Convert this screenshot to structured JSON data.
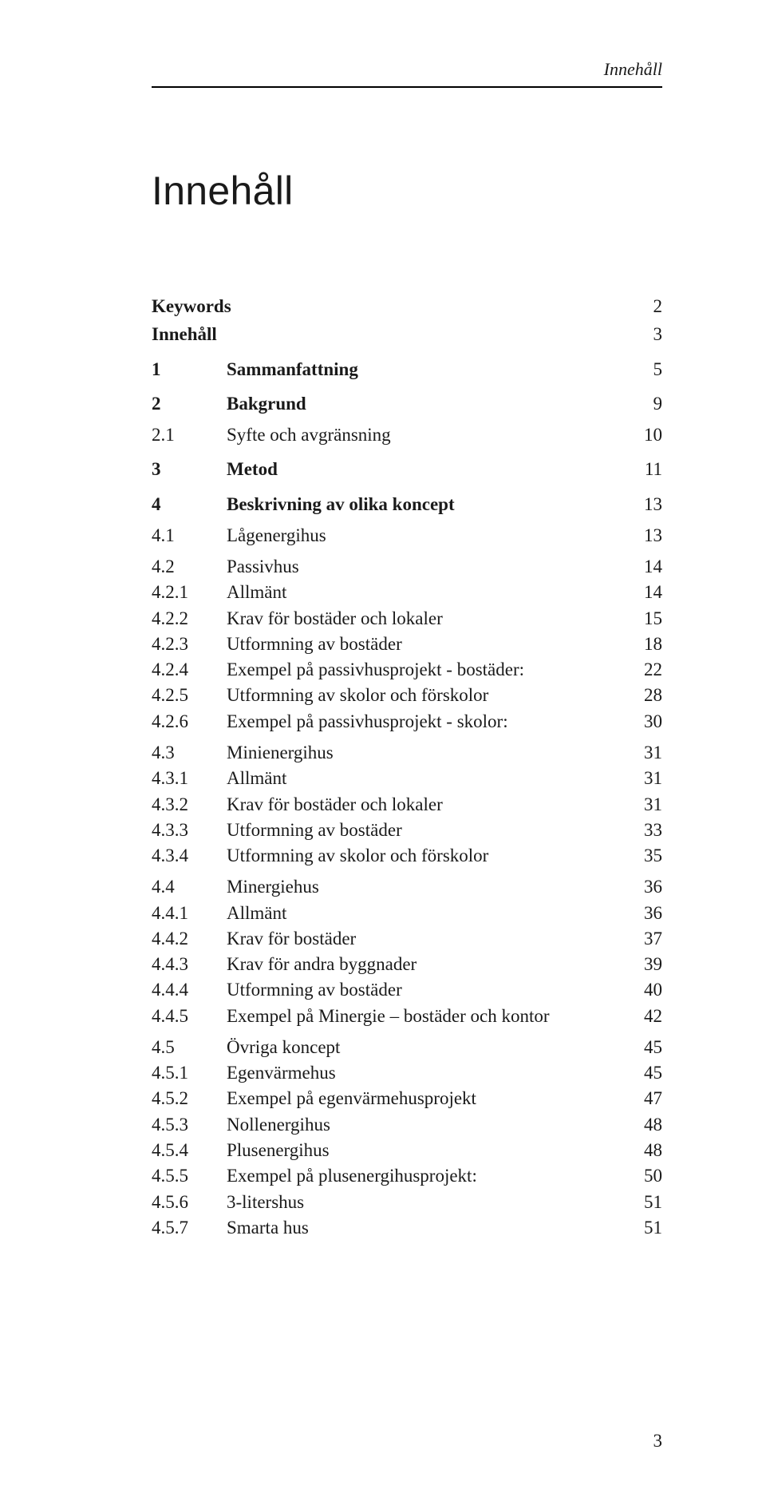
{
  "running_head": "Innehåll",
  "title": "Innehåll",
  "footer_page": "3",
  "toc": [
    {
      "level": "top",
      "num": "",
      "label": "Keywords",
      "page": "2"
    },
    {
      "level": "top",
      "num": "",
      "label": "Innehåll",
      "page": "3"
    },
    {
      "level": "section",
      "num": "1",
      "label": "Sammanfattning",
      "page": "5"
    },
    {
      "level": "section",
      "num": "2",
      "label": "Bakgrund",
      "page": "9"
    },
    {
      "level": "sub",
      "num": "2.1",
      "label": "Syfte och avgränsning",
      "page": "10"
    },
    {
      "level": "section",
      "num": "3",
      "label": "Metod",
      "page": "11"
    },
    {
      "level": "section",
      "num": "4",
      "label": "Beskrivning av olika koncept",
      "page": "13"
    },
    {
      "level": "sub",
      "num": "4.1",
      "label": "Lågenergihus",
      "page": "13"
    },
    {
      "level": "sub",
      "num": "4.2",
      "label": "Passivhus",
      "page": "14"
    },
    {
      "level": "subsub",
      "num": "4.2.1",
      "label": "Allmänt",
      "page": "14"
    },
    {
      "level": "subsub",
      "num": "4.2.2",
      "label": "Krav för bostäder och lokaler",
      "page": "15"
    },
    {
      "level": "subsub",
      "num": "4.2.3",
      "label": "Utformning av bostäder",
      "page": "18"
    },
    {
      "level": "subsub",
      "num": "4.2.4",
      "label": "Exempel på passivhusprojekt - bostäder:",
      "page": "22"
    },
    {
      "level": "subsub",
      "num": "4.2.5",
      "label": "Utformning av skolor och förskolor",
      "page": "28"
    },
    {
      "level": "subsub",
      "num": "4.2.6",
      "label": "Exempel på passivhusprojekt - skolor:",
      "page": "30"
    },
    {
      "level": "sub",
      "num": "4.3",
      "label": "Minienergihus",
      "page": "31"
    },
    {
      "level": "subsub",
      "num": "4.3.1",
      "label": "Allmänt",
      "page": "31"
    },
    {
      "level": "subsub",
      "num": "4.3.2",
      "label": "Krav för bostäder och lokaler",
      "page": "31"
    },
    {
      "level": "subsub",
      "num": "4.3.3",
      "label": "Utformning av bostäder",
      "page": "33"
    },
    {
      "level": "subsub",
      "num": "4.3.4",
      "label": "Utformning av skolor och förskolor",
      "page": "35"
    },
    {
      "level": "sub",
      "num": "4.4",
      "label": "Minergiehus",
      "page": "36"
    },
    {
      "level": "subsub",
      "num": "4.4.1",
      "label": "Allmänt",
      "page": "36"
    },
    {
      "level": "subsub",
      "num": "4.4.2",
      "label": "Krav för bostäder",
      "page": "37"
    },
    {
      "level": "subsub",
      "num": "4.4.3",
      "label": "Krav för andra byggnader",
      "page": "39"
    },
    {
      "level": "subsub",
      "num": "4.4.4",
      "label": "Utformning av bostäder",
      "page": "40"
    },
    {
      "level": "subsub",
      "num": "4.4.5",
      "label": "Exempel på Minergie – bostäder och kontor",
      "page": "42"
    },
    {
      "level": "sub",
      "num": "4.5",
      "label": "Övriga koncept",
      "page": "45"
    },
    {
      "level": "subsub",
      "num": "4.5.1",
      "label": "Egenvärmehus",
      "page": "45"
    },
    {
      "level": "subsub",
      "num": "4.5.2",
      "label": "Exempel på egenvärmehusprojekt",
      "page": "47"
    },
    {
      "level": "subsub",
      "num": "4.5.3",
      "label": "Nollenergihus",
      "page": "48"
    },
    {
      "level": "subsub",
      "num": "4.5.4",
      "label": "Plusenergihus",
      "page": "48"
    },
    {
      "level": "subsub",
      "num": "4.5.5",
      "label": "Exempel på plusenergihusprojekt:",
      "page": "50"
    },
    {
      "level": "subsub",
      "num": "4.5.6",
      "label": "3-litershus",
      "page": "51"
    },
    {
      "level": "subsub",
      "num": "4.5.7",
      "label": "Smarta hus",
      "page": "51"
    }
  ]
}
